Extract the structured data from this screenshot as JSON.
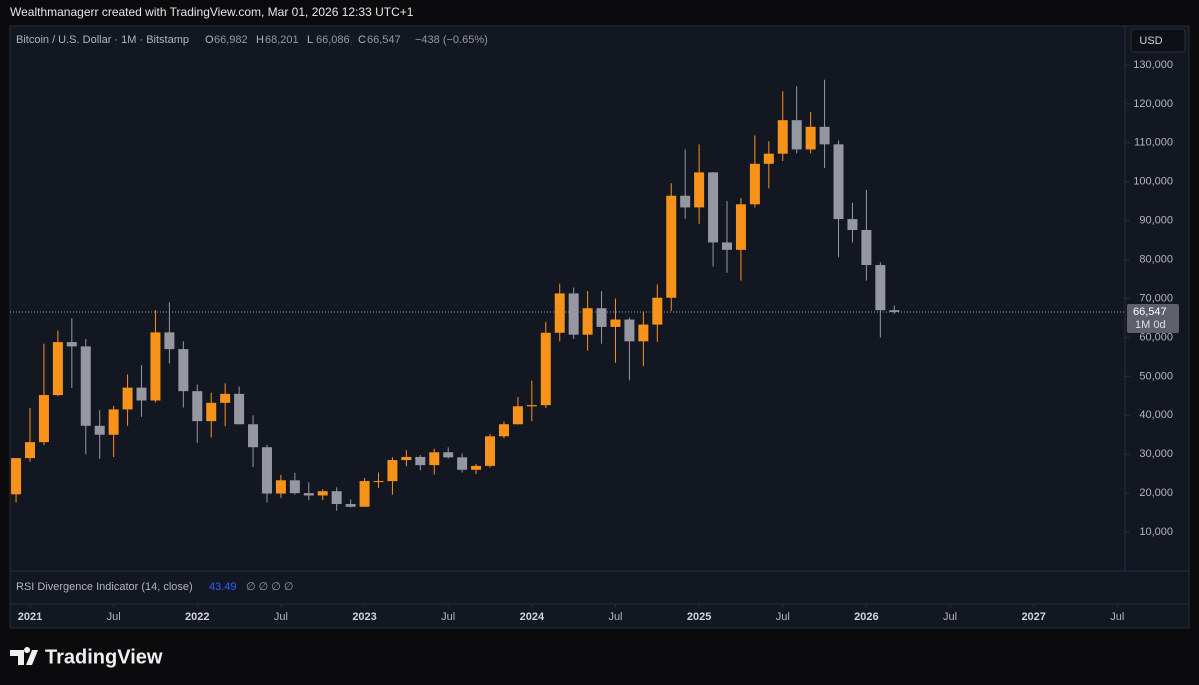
{
  "header": {
    "credit": "Wealthmanagerr created with TradingView.com, Mar 01, 2026 12:33 UTC+1",
    "symbol": "Bitcoin / U.S. Dollar · 1M · Bitstamp",
    "ohlc": [
      {
        "key": "O",
        "text": "66,982"
      },
      {
        "key": "H",
        "text": "68,201"
      },
      {
        "key": "L",
        "text": "66,086"
      },
      {
        "key": "C",
        "text": "66,547"
      }
    ],
    "change": "−438 (−0.65%)",
    "currency": "USD"
  },
  "indicator": {
    "name": "RSI Divergence Indicator (14, close)",
    "value": "43.49",
    "flags": "∅ ∅ ∅ ∅"
  },
  "footer": {
    "brand": "TradingView"
  },
  "chart_data": {
    "type": "candlestick",
    "up_color": "#f7931a",
    "down_color": "#9598a1",
    "ylim": [
      0,
      140000
    ],
    "yticks": [
      {
        "value": 10000,
        "label": "10,000"
      },
      {
        "value": 20000,
        "label": "20,000"
      },
      {
        "value": 30000,
        "label": "30,000"
      },
      {
        "value": 40000,
        "label": "40,000"
      },
      {
        "value": 50000,
        "label": "50,000"
      },
      {
        "value": 60000,
        "label": "60,000"
      },
      {
        "value": 70000,
        "label": "70,000"
      },
      {
        "value": 80000,
        "label": "80,000"
      },
      {
        "value": 90000,
        "label": "90,000"
      },
      {
        "value": 100000,
        "label": "100,000"
      },
      {
        "value": 110000,
        "label": "110,000"
      },
      {
        "value": 120000,
        "label": "120,000"
      },
      {
        "value": 130000,
        "label": "130,000"
      }
    ],
    "xticks": [
      {
        "value": "2021-01",
        "label": "2021"
      },
      {
        "value": "2021-07",
        "label": "Jul"
      },
      {
        "value": "2022-01",
        "label": "2022"
      },
      {
        "value": "2022-07",
        "label": "Jul"
      },
      {
        "value": "2023-01",
        "label": "2023"
      },
      {
        "value": "2023-07",
        "label": "Jul"
      },
      {
        "value": "2024-01",
        "label": "2024"
      },
      {
        "value": "2024-07",
        "label": "Jul"
      },
      {
        "value": "2025-01",
        "label": "2025"
      },
      {
        "value": "2025-07",
        "label": "Jul"
      },
      {
        "value": "2026-01",
        "label": "2026"
      },
      {
        "value": "2026-07",
        "label": "Jul"
      },
      {
        "value": "2027-01",
        "label": "2027"
      },
      {
        "value": "2027-07",
        "label": "Jul"
      }
    ],
    "last_price": {
      "value": 66547,
      "label": "66,547",
      "period": "1M 0d"
    },
    "candles": [
      {
        "x": "2020-12",
        "open": 19700,
        "high": 29000,
        "low": 17600,
        "close": 29000
      },
      {
        "x": "2021-01",
        "open": 29000,
        "high": 41900,
        "low": 28100,
        "close": 33100
      },
      {
        "x": "2021-02",
        "open": 33100,
        "high": 58400,
        "low": 32300,
        "close": 45200
      },
      {
        "x": "2021-03",
        "open": 45200,
        "high": 61800,
        "low": 44900,
        "close": 58800
      },
      {
        "x": "2021-04",
        "open": 58800,
        "high": 64900,
        "low": 47000,
        "close": 57700
      },
      {
        "x": "2021-05",
        "open": 57700,
        "high": 59600,
        "low": 30000,
        "close": 37300
      },
      {
        "x": "2021-06",
        "open": 37300,
        "high": 41300,
        "low": 28800,
        "close": 35000
      },
      {
        "x": "2021-07",
        "open": 35000,
        "high": 42400,
        "low": 29300,
        "close": 41500
      },
      {
        "x": "2021-08",
        "open": 41500,
        "high": 50500,
        "low": 37300,
        "close": 47100
      },
      {
        "x": "2021-09",
        "open": 47100,
        "high": 52900,
        "low": 39600,
        "close": 43800
      },
      {
        "x": "2021-10",
        "open": 43800,
        "high": 67000,
        "low": 43300,
        "close": 61300
      },
      {
        "x": "2021-11",
        "open": 61300,
        "high": 69000,
        "low": 53300,
        "close": 57000
      },
      {
        "x": "2021-12",
        "open": 57000,
        "high": 59000,
        "low": 42000,
        "close": 46200
      },
      {
        "x": "2022-01",
        "open": 46200,
        "high": 47900,
        "low": 32900,
        "close": 38500
      },
      {
        "x": "2022-02",
        "open": 38500,
        "high": 45800,
        "low": 34300,
        "close": 43200
      },
      {
        "x": "2022-03",
        "open": 43200,
        "high": 48200,
        "low": 37200,
        "close": 45500
      },
      {
        "x": "2022-04",
        "open": 45500,
        "high": 47400,
        "low": 37700,
        "close": 37700
      },
      {
        "x": "2022-05",
        "open": 37700,
        "high": 40000,
        "low": 26700,
        "close": 31800
      },
      {
        "x": "2022-06",
        "open": 31800,
        "high": 32400,
        "low": 17600,
        "close": 19900
      },
      {
        "x": "2022-07",
        "open": 19900,
        "high": 24700,
        "low": 18800,
        "close": 23300
      },
      {
        "x": "2022-08",
        "open": 23300,
        "high": 25200,
        "low": 19600,
        "close": 20000
      },
      {
        "x": "2022-09",
        "open": 20000,
        "high": 22800,
        "low": 18200,
        "close": 19400
      },
      {
        "x": "2022-10",
        "open": 19400,
        "high": 21000,
        "low": 18200,
        "close": 20500
      },
      {
        "x": "2022-11",
        "open": 20500,
        "high": 21500,
        "low": 15500,
        "close": 17200
      },
      {
        "x": "2022-12",
        "open": 17200,
        "high": 18400,
        "low": 16300,
        "close": 16500
      },
      {
        "x": "2023-01",
        "open": 16500,
        "high": 23900,
        "low": 16500,
        "close": 23100
      },
      {
        "x": "2023-02",
        "open": 23100,
        "high": 25300,
        "low": 21400,
        "close": 23100
      },
      {
        "x": "2023-03",
        "open": 23100,
        "high": 29200,
        "low": 19600,
        "close": 28500
      },
      {
        "x": "2023-04",
        "open": 28500,
        "high": 31000,
        "low": 26900,
        "close": 29300
      },
      {
        "x": "2023-05",
        "open": 29300,
        "high": 29800,
        "low": 25900,
        "close": 27200
      },
      {
        "x": "2023-06",
        "open": 27200,
        "high": 31400,
        "low": 24800,
        "close": 30500
      },
      {
        "x": "2023-07",
        "open": 30500,
        "high": 31800,
        "low": 28900,
        "close": 29200
      },
      {
        "x": "2023-08",
        "open": 29200,
        "high": 30200,
        "low": 25300,
        "close": 26000
      },
      {
        "x": "2023-09",
        "open": 26000,
        "high": 27500,
        "low": 24900,
        "close": 27000
      },
      {
        "x": "2023-10",
        "open": 27000,
        "high": 35200,
        "low": 26600,
        "close": 34600
      },
      {
        "x": "2023-11",
        "open": 34600,
        "high": 38400,
        "low": 34100,
        "close": 37700
      },
      {
        "x": "2023-12",
        "open": 37700,
        "high": 44700,
        "low": 37600,
        "close": 42300
      },
      {
        "x": "2024-01",
        "open": 42300,
        "high": 48900,
        "low": 38500,
        "close": 42600
      },
      {
        "x": "2024-02",
        "open": 42600,
        "high": 64000,
        "low": 41900,
        "close": 61200
      },
      {
        "x": "2024-03",
        "open": 61200,
        "high": 73800,
        "low": 59000,
        "close": 71300
      },
      {
        "x": "2024-04",
        "open": 71300,
        "high": 72800,
        "low": 59600,
        "close": 60700
      },
      {
        "x": "2024-05",
        "open": 60700,
        "high": 71900,
        "low": 56600,
        "close": 67500
      },
      {
        "x": "2024-06",
        "open": 67500,
        "high": 71900,
        "low": 58400,
        "close": 62700
      },
      {
        "x": "2024-07",
        "open": 62700,
        "high": 70000,
        "low": 53500,
        "close": 64600
      },
      {
        "x": "2024-08",
        "open": 64600,
        "high": 65100,
        "low": 49000,
        "close": 59000
      },
      {
        "x": "2024-09",
        "open": 59000,
        "high": 66500,
        "low": 52600,
        "close": 63300
      },
      {
        "x": "2024-10",
        "open": 63300,
        "high": 73600,
        "low": 58900,
        "close": 70200
      },
      {
        "x": "2024-11",
        "open": 70200,
        "high": 99600,
        "low": 66800,
        "close": 96400
      },
      {
        "x": "2024-12",
        "open": 96400,
        "high": 108300,
        "low": 90500,
        "close": 93400
      },
      {
        "x": "2025-01",
        "open": 93400,
        "high": 109600,
        "low": 89200,
        "close": 102400
      },
      {
        "x": "2025-02",
        "open": 102400,
        "high": 102500,
        "low": 78200,
        "close": 84400
      },
      {
        "x": "2025-03",
        "open": 84400,
        "high": 95000,
        "low": 76600,
        "close": 82500
      },
      {
        "x": "2025-04",
        "open": 82500,
        "high": 95800,
        "low": 74600,
        "close": 94200
      },
      {
        "x": "2025-05",
        "open": 94200,
        "high": 111900,
        "low": 93400,
        "close": 104600
      },
      {
        "x": "2025-06",
        "open": 104600,
        "high": 110400,
        "low": 98300,
        "close": 107200
      },
      {
        "x": "2025-07",
        "open": 107200,
        "high": 123200,
        "low": 105300,
        "close": 115800
      },
      {
        "x": "2025-08",
        "open": 115800,
        "high": 124500,
        "low": 107300,
        "close": 108300
      },
      {
        "x": "2025-09",
        "open": 108300,
        "high": 117900,
        "low": 107300,
        "close": 114100
      },
      {
        "x": "2025-10",
        "open": 114100,
        "high": 126200,
        "low": 103500,
        "close": 109600
      },
      {
        "x": "2025-11",
        "open": 109600,
        "high": 110600,
        "low": 80600,
        "close": 90400
      },
      {
        "x": "2025-12",
        "open": 90400,
        "high": 94600,
        "low": 84400,
        "close": 87600
      },
      {
        "x": "2026-01",
        "open": 87600,
        "high": 97900,
        "low": 74600,
        "close": 78600
      },
      {
        "x": "2026-02",
        "open": 78600,
        "high": 79300,
        "low": 60000,
        "close": 67000
      },
      {
        "x": "2026-03",
        "open": 66982,
        "high": 68201,
        "low": 66086,
        "close": 66547
      }
    ]
  }
}
